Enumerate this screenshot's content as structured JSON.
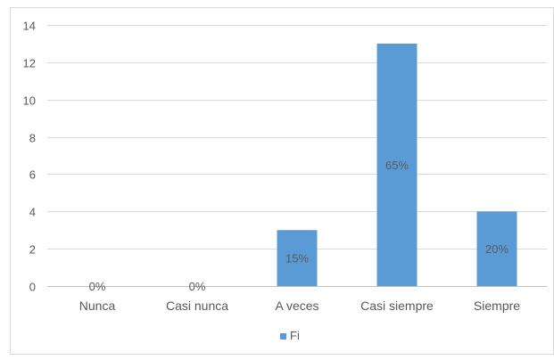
{
  "chart_data": {
    "type": "bar",
    "categories": [
      "Nunca",
      "Casi nunca",
      "A veces",
      "Casi siempre",
      "Siempre"
    ],
    "series": [
      {
        "name": "Fi",
        "values": [
          0,
          0,
          3,
          13,
          4
        ],
        "data_labels": [
          "0%",
          "0%",
          "15%",
          "65%",
          "20%"
        ]
      }
    ],
    "y_ticks": [
      "0",
      "2",
      "4",
      "6",
      "8",
      "10",
      "12",
      "14"
    ],
    "ylim": [
      0,
      14
    ],
    "grid": true,
    "legend": "bottom",
    "colors": {
      "bar": "#5B9BD5",
      "grid": "#D9D9D9",
      "axis": "#BFBFBF",
      "text": "#595959",
      "border": "#D9D9D9"
    }
  }
}
